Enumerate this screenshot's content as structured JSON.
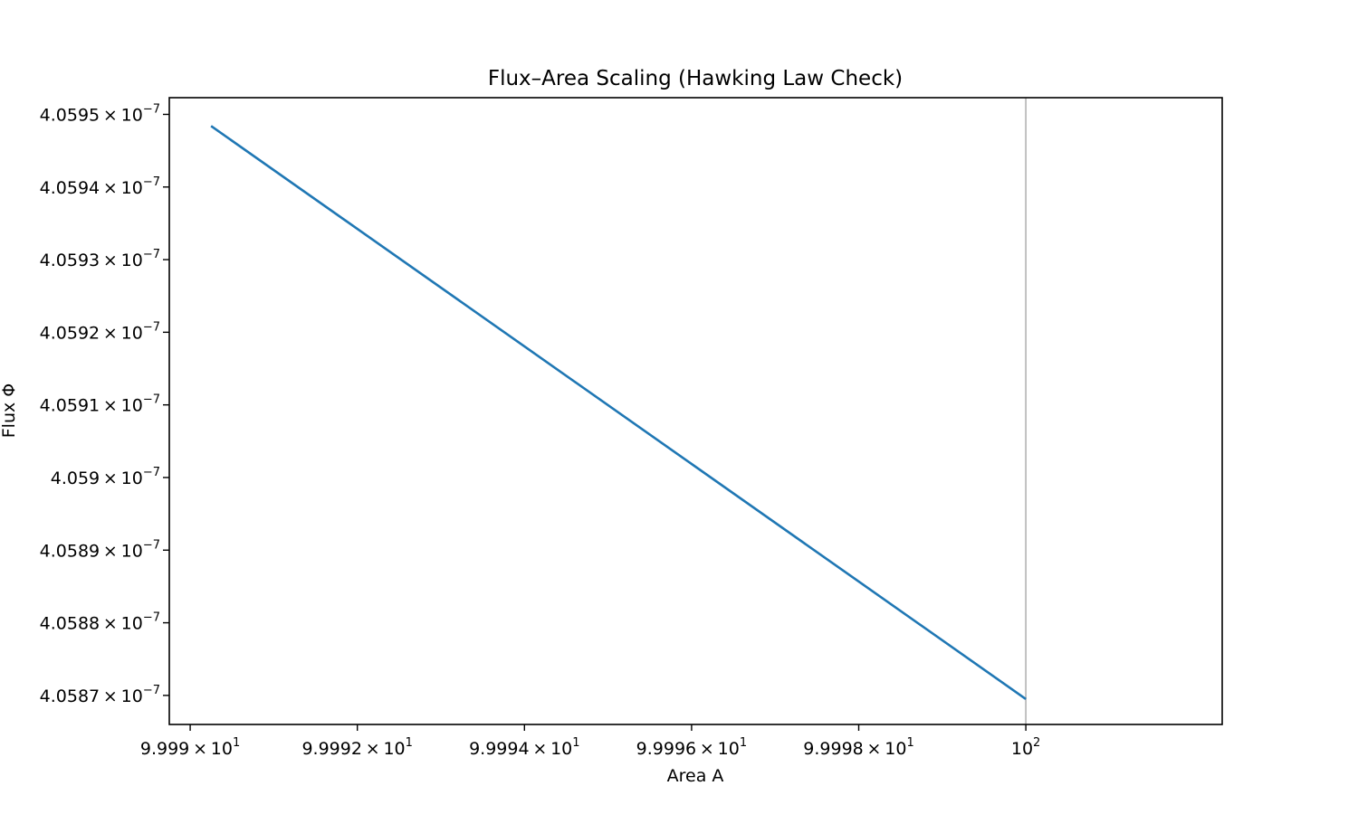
{
  "chart_data": {
    "type": "line",
    "title": "Flux–Area Scaling (Hawking Law Check)",
    "xlabel": "Area A",
    "ylabel": "Flux Φ",
    "xscale": "log",
    "yscale": "log",
    "grid": false,
    "legend": "none",
    "xlim": [
      99.98975,
      100.00235
    ],
    "ylim": [
      4.05866e-07,
      4.059523e-07
    ],
    "xticks": [
      {
        "value": 99.99,
        "mantissa": "9.999",
        "base": "10",
        "exponent": "1"
      },
      {
        "value": 99.992,
        "mantissa": "9.9992",
        "base": "10",
        "exponent": "1"
      },
      {
        "value": 99.994,
        "mantissa": "9.9994",
        "base": "10",
        "exponent": "1"
      },
      {
        "value": 99.996,
        "mantissa": "9.9996",
        "base": "10",
        "exponent": "1"
      },
      {
        "value": 99.998,
        "mantissa": "9.9998",
        "base": "10",
        "exponent": "1"
      },
      {
        "value": 100.0,
        "mantissa": "",
        "base": "10",
        "exponent": "2"
      }
    ],
    "yticks": [
      {
        "value": 4.0595e-07,
        "mantissa": "4.0595",
        "base": "10",
        "exponent": "−7"
      },
      {
        "value": 4.0594e-07,
        "mantissa": "4.0594",
        "base": "10",
        "exponent": "−7"
      },
      {
        "value": 4.0593e-07,
        "mantissa": "4.0593",
        "base": "10",
        "exponent": "−7"
      },
      {
        "value": 4.0592e-07,
        "mantissa": "4.0592",
        "base": "10",
        "exponent": "−7"
      },
      {
        "value": 4.0591e-07,
        "mantissa": "4.0591",
        "base": "10",
        "exponent": "−7"
      },
      {
        "value": 4.059e-07,
        "mantissa": "4.059",
        "base": "10",
        "exponent": "−7"
      },
      {
        "value": 4.0589e-07,
        "mantissa": "4.0589",
        "base": "10",
        "exponent": "−7"
      },
      {
        "value": 4.0588e-07,
        "mantissa": "4.0588",
        "base": "10",
        "exponent": "−7"
      },
      {
        "value": 4.0587e-07,
        "mantissa": "4.0587",
        "base": "10",
        "exponent": "−7"
      }
    ],
    "reference_line": {
      "x": 100.0,
      "color": "#bbbbbb"
    },
    "series": [
      {
        "color": "#1f77b4",
        "x": [
          99.99025,
          100.0
        ],
        "y": [
          4.059484e-07,
          4.058695e-07
        ]
      }
    ]
  }
}
